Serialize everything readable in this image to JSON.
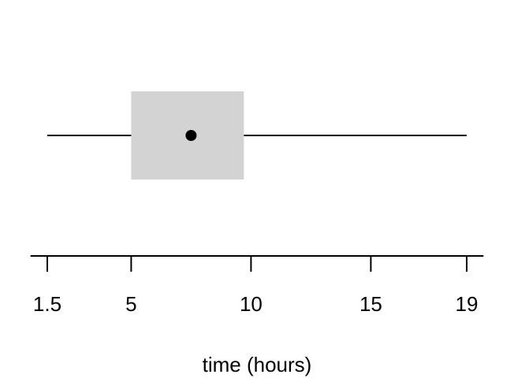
{
  "chart_data": {
    "type": "boxplot",
    "orientation": "horizontal",
    "title": "",
    "xlabel": "time (hours)",
    "ylabel": "",
    "xlim": [
      0.8,
      19.7
    ],
    "x_ticks": [
      1.5,
      5,
      10,
      15,
      19
    ],
    "x_tick_labels": [
      "1.5",
      "5",
      "10",
      "15",
      "19"
    ],
    "grid": false,
    "summary": {
      "min": 1.5,
      "q1": 5,
      "median": 7.5,
      "q3": 9.7,
      "max": 19
    },
    "colors": {
      "box_fill": "#d3d3d3",
      "whisker": "#000000",
      "median_point": "#000000",
      "axis": "#000000"
    }
  }
}
